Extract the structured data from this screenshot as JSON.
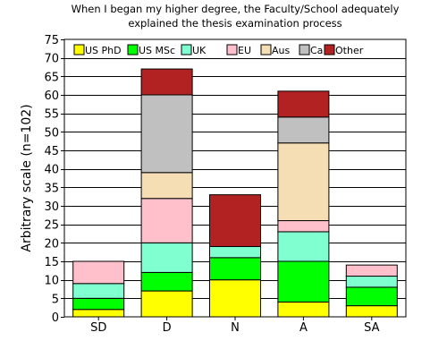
{
  "chart_data": {
    "type": "bar",
    "stacked": true,
    "title_lines": [
      "When I began my higher degree, the Faculty/School adequately",
      "explained the thesis examination process"
    ],
    "xlabel": "",
    "ylabel": "Arbitrary scale (n=102)",
    "ylim": [
      0,
      75
    ],
    "ytick_step": 5,
    "grid": true,
    "legend_position": "top",
    "categories": [
      "SD",
      "D",
      "N",
      "A",
      "SA"
    ],
    "series": [
      {
        "name": "US PhD",
        "color": "#ffff00",
        "values": [
          2,
          7,
          10,
          4,
          3
        ]
      },
      {
        "name": "US MSc",
        "color": "#00ff00",
        "values": [
          3,
          5,
          6,
          11,
          5
        ]
      },
      {
        "name": "UK",
        "color": "#80ffd0",
        "values": [
          4,
          8,
          3,
          8,
          3
        ]
      },
      {
        "name": "EU",
        "color": "#ffc0cb",
        "values": [
          6,
          12,
          0,
          3,
          3
        ]
      },
      {
        "name": "Aus",
        "color": "#f5deb3",
        "values": [
          0,
          7,
          0,
          21,
          0
        ]
      },
      {
        "name": "Ca",
        "color": "#c0c0c0",
        "values": [
          0,
          21,
          0,
          7,
          0
        ]
      },
      {
        "name": "Other",
        "color": "#b22222",
        "values": [
          0,
          7,
          14,
          7,
          0
        ]
      }
    ]
  }
}
